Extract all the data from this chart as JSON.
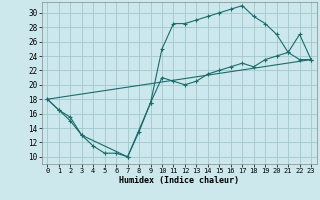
{
  "title": "",
  "xlabel": "Humidex (Indice chaleur)",
  "bg_color": "#cce8ec",
  "grid_color": "#a0c8cf",
  "line_color": "#1a6b6b",
  "xlim": [
    -0.5,
    23.5
  ],
  "ylim": [
    9,
    31.5
  ],
  "xticks": [
    0,
    1,
    2,
    3,
    4,
    5,
    6,
    7,
    8,
    9,
    10,
    11,
    12,
    13,
    14,
    15,
    16,
    17,
    18,
    19,
    20,
    21,
    22,
    23
  ],
  "yticks": [
    10,
    12,
    14,
    16,
    18,
    20,
    22,
    24,
    26,
    28,
    30
  ],
  "line1_x": [
    0,
    1,
    2,
    3,
    4,
    5,
    6,
    7,
    8,
    9,
    10,
    11,
    12,
    13,
    14,
    15,
    16,
    17,
    18,
    19,
    20,
    21,
    22,
    23
  ],
  "line1_y": [
    18.0,
    16.5,
    15.0,
    13.0,
    11.5,
    10.5,
    10.5,
    10.0,
    13.5,
    17.5,
    25.0,
    28.5,
    28.5,
    29.0,
    29.5,
    30.0,
    30.5,
    31.0,
    29.5,
    28.5,
    27.0,
    24.5,
    23.5,
    23.5
  ],
  "line2_x": [
    0,
    1,
    2,
    3,
    7,
    9,
    10,
    11,
    12,
    13,
    14,
    15,
    16,
    17,
    18,
    19,
    20,
    21,
    22,
    23
  ],
  "line2_y": [
    18.0,
    16.5,
    15.5,
    13.0,
    10.0,
    17.5,
    21.0,
    20.5,
    20.0,
    20.5,
    21.5,
    22.0,
    22.5,
    23.0,
    22.5,
    23.5,
    24.0,
    24.5,
    27.0,
    23.5
  ],
  "line3_x": [
    0,
    23
  ],
  "line3_y": [
    18.0,
    23.5
  ]
}
